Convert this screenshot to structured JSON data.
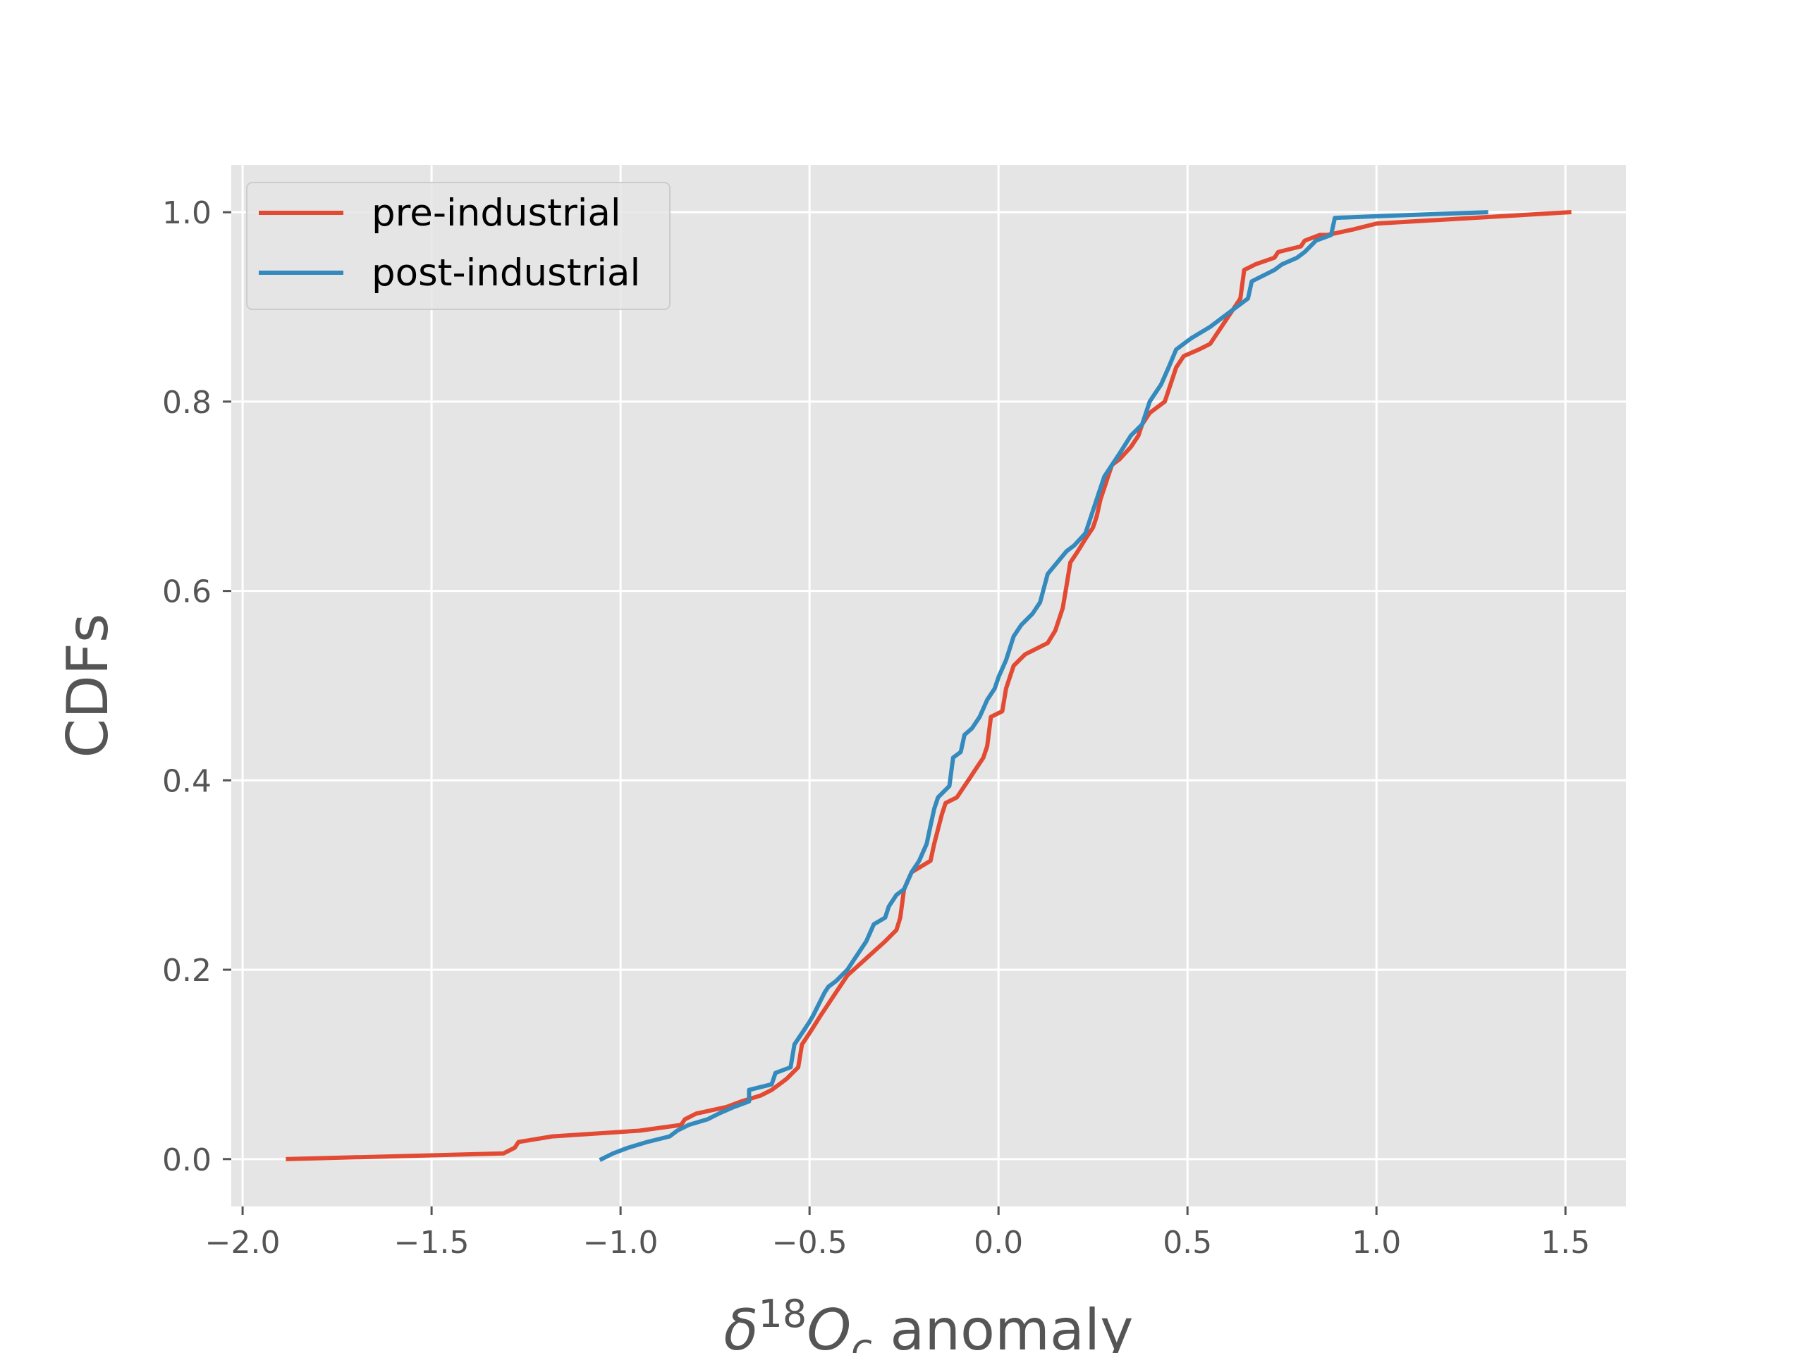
{
  "chart_data": {
    "type": "line",
    "xlabel": {
      "delta": "δ",
      "superscript": "18",
      "O": "O",
      "subscript": "c",
      "rest": " anomaly"
    },
    "ylabel": "CDFs",
    "xlim": [
      -2.03,
      1.66
    ],
    "ylim": [
      -0.05,
      1.05
    ],
    "xticks": [
      -2.0,
      -1.5,
      -1.0,
      -0.5,
      0.0,
      0.5,
      1.0,
      1.5
    ],
    "xtick_labels": [
      "−2.0",
      "−1.5",
      "−1.0",
      "−0.5",
      "0.0",
      "0.5",
      "1.0",
      "1.5"
    ],
    "yticks": [
      0.0,
      0.2,
      0.4,
      0.6,
      0.8,
      1.0
    ],
    "ytick_labels": [
      "0.0",
      "0.2",
      "0.4",
      "0.6",
      "0.8",
      "1.0"
    ],
    "grid": true,
    "legend_position": "top-left",
    "series": [
      {
        "name": "pre-industrial",
        "color": "#E24A33",
        "x": [
          -1.88,
          -1.31,
          -1.28,
          -1.27,
          -1.18,
          -0.95,
          -0.84,
          -0.83,
          -0.8,
          -0.72,
          -0.68,
          -0.63,
          -0.6,
          -0.58,
          -0.56,
          -0.53,
          -0.52,
          -0.5,
          -0.47,
          -0.46,
          -0.44,
          -0.42,
          -0.4,
          -0.35,
          -0.3,
          -0.27,
          -0.26,
          -0.25,
          -0.23,
          -0.18,
          -0.17,
          -0.15,
          -0.14,
          -0.11,
          -0.09,
          -0.08,
          -0.06,
          -0.04,
          -0.03,
          -0.02,
          0.01,
          0.02,
          0.04,
          0.07,
          0.13,
          0.15,
          0.17,
          0.18,
          0.19,
          0.21,
          0.23,
          0.25,
          0.26,
          0.27,
          0.28,
          0.29,
          0.3,
          0.32,
          0.35,
          0.37,
          0.38,
          0.4,
          0.44,
          0.45,
          0.47,
          0.49,
          0.53,
          0.56,
          0.57,
          0.59,
          0.61,
          0.62,
          0.64,
          0.65,
          0.68,
          0.73,
          0.74,
          0.8,
          0.81,
          0.85,
          0.86,
          0.87,
          0.94,
          1.0,
          1.51
        ],
        "y": [
          0.0,
          0.006,
          0.012,
          0.018,
          0.024,
          0.03,
          0.036,
          0.042,
          0.048,
          0.055,
          0.061,
          0.067,
          0.073,
          0.079,
          0.085,
          0.097,
          0.121,
          0.133,
          0.152,
          0.158,
          0.17,
          0.182,
          0.194,
          0.212,
          0.23,
          0.242,
          0.255,
          0.285,
          0.303,
          0.315,
          0.333,
          0.364,
          0.376,
          0.382,
          0.394,
          0.4,
          0.412,
          0.424,
          0.436,
          0.467,
          0.473,
          0.497,
          0.521,
          0.533,
          0.545,
          0.558,
          0.582,
          0.606,
          0.63,
          0.642,
          0.655,
          0.667,
          0.679,
          0.697,
          0.709,
          0.721,
          0.733,
          0.739,
          0.752,
          0.764,
          0.776,
          0.788,
          0.8,
          0.812,
          0.836,
          0.848,
          0.855,
          0.861,
          0.867,
          0.879,
          0.891,
          0.897,
          0.909,
          0.939,
          0.945,
          0.952,
          0.958,
          0.964,
          0.97,
          0.976,
          0.976,
          0.976,
          0.982,
          0.988,
          1.0
        ]
      },
      {
        "name": "post-industrial",
        "color": "#348ABD",
        "x": [
          -1.05,
          -1.02,
          -0.98,
          -0.93,
          -0.87,
          -0.85,
          -0.82,
          -0.77,
          -0.74,
          -0.7,
          -0.66,
          -0.66,
          -0.6,
          -0.59,
          -0.55,
          -0.54,
          -0.51,
          -0.5,
          -0.49,
          -0.46,
          -0.45,
          -0.43,
          -0.4,
          -0.38,
          -0.35,
          -0.33,
          -0.3,
          -0.29,
          -0.27,
          -0.25,
          -0.23,
          -0.21,
          -0.19,
          -0.18,
          -0.17,
          -0.16,
          -0.13,
          -0.12,
          -0.1,
          -0.09,
          -0.07,
          -0.05,
          -0.03,
          -0.01,
          0.0,
          0.02,
          0.04,
          0.06,
          0.09,
          0.11,
          0.13,
          0.18,
          0.2,
          0.23,
          0.26,
          0.28,
          0.3,
          0.32,
          0.35,
          0.38,
          0.4,
          0.41,
          0.43,
          0.45,
          0.47,
          0.51,
          0.56,
          0.62,
          0.66,
          0.67,
          0.73,
          0.75,
          0.79,
          0.81,
          0.84,
          0.88,
          0.89,
          1.01,
          1.29
        ],
        "y": [
          0.0,
          0.006,
          0.012,
          0.018,
          0.024,
          0.03,
          0.036,
          0.042,
          0.048,
          0.055,
          0.061,
          0.073,
          0.079,
          0.091,
          0.097,
          0.121,
          0.139,
          0.145,
          0.152,
          0.176,
          0.182,
          0.188,
          0.2,
          0.212,
          0.23,
          0.248,
          0.255,
          0.267,
          0.279,
          0.285,
          0.303,
          0.315,
          0.333,
          0.352,
          0.37,
          0.382,
          0.394,
          0.424,
          0.43,
          0.448,
          0.455,
          0.467,
          0.485,
          0.497,
          0.509,
          0.527,
          0.552,
          0.564,
          0.576,
          0.588,
          0.618,
          0.642,
          0.648,
          0.661,
          0.697,
          0.721,
          0.733,
          0.745,
          0.764,
          0.776,
          0.8,
          0.806,
          0.818,
          0.836,
          0.855,
          0.867,
          0.879,
          0.897,
          0.909,
          0.927,
          0.939,
          0.945,
          0.952,
          0.958,
          0.97,
          0.976,
          0.994,
          0.996,
          1.0
        ]
      }
    ]
  }
}
